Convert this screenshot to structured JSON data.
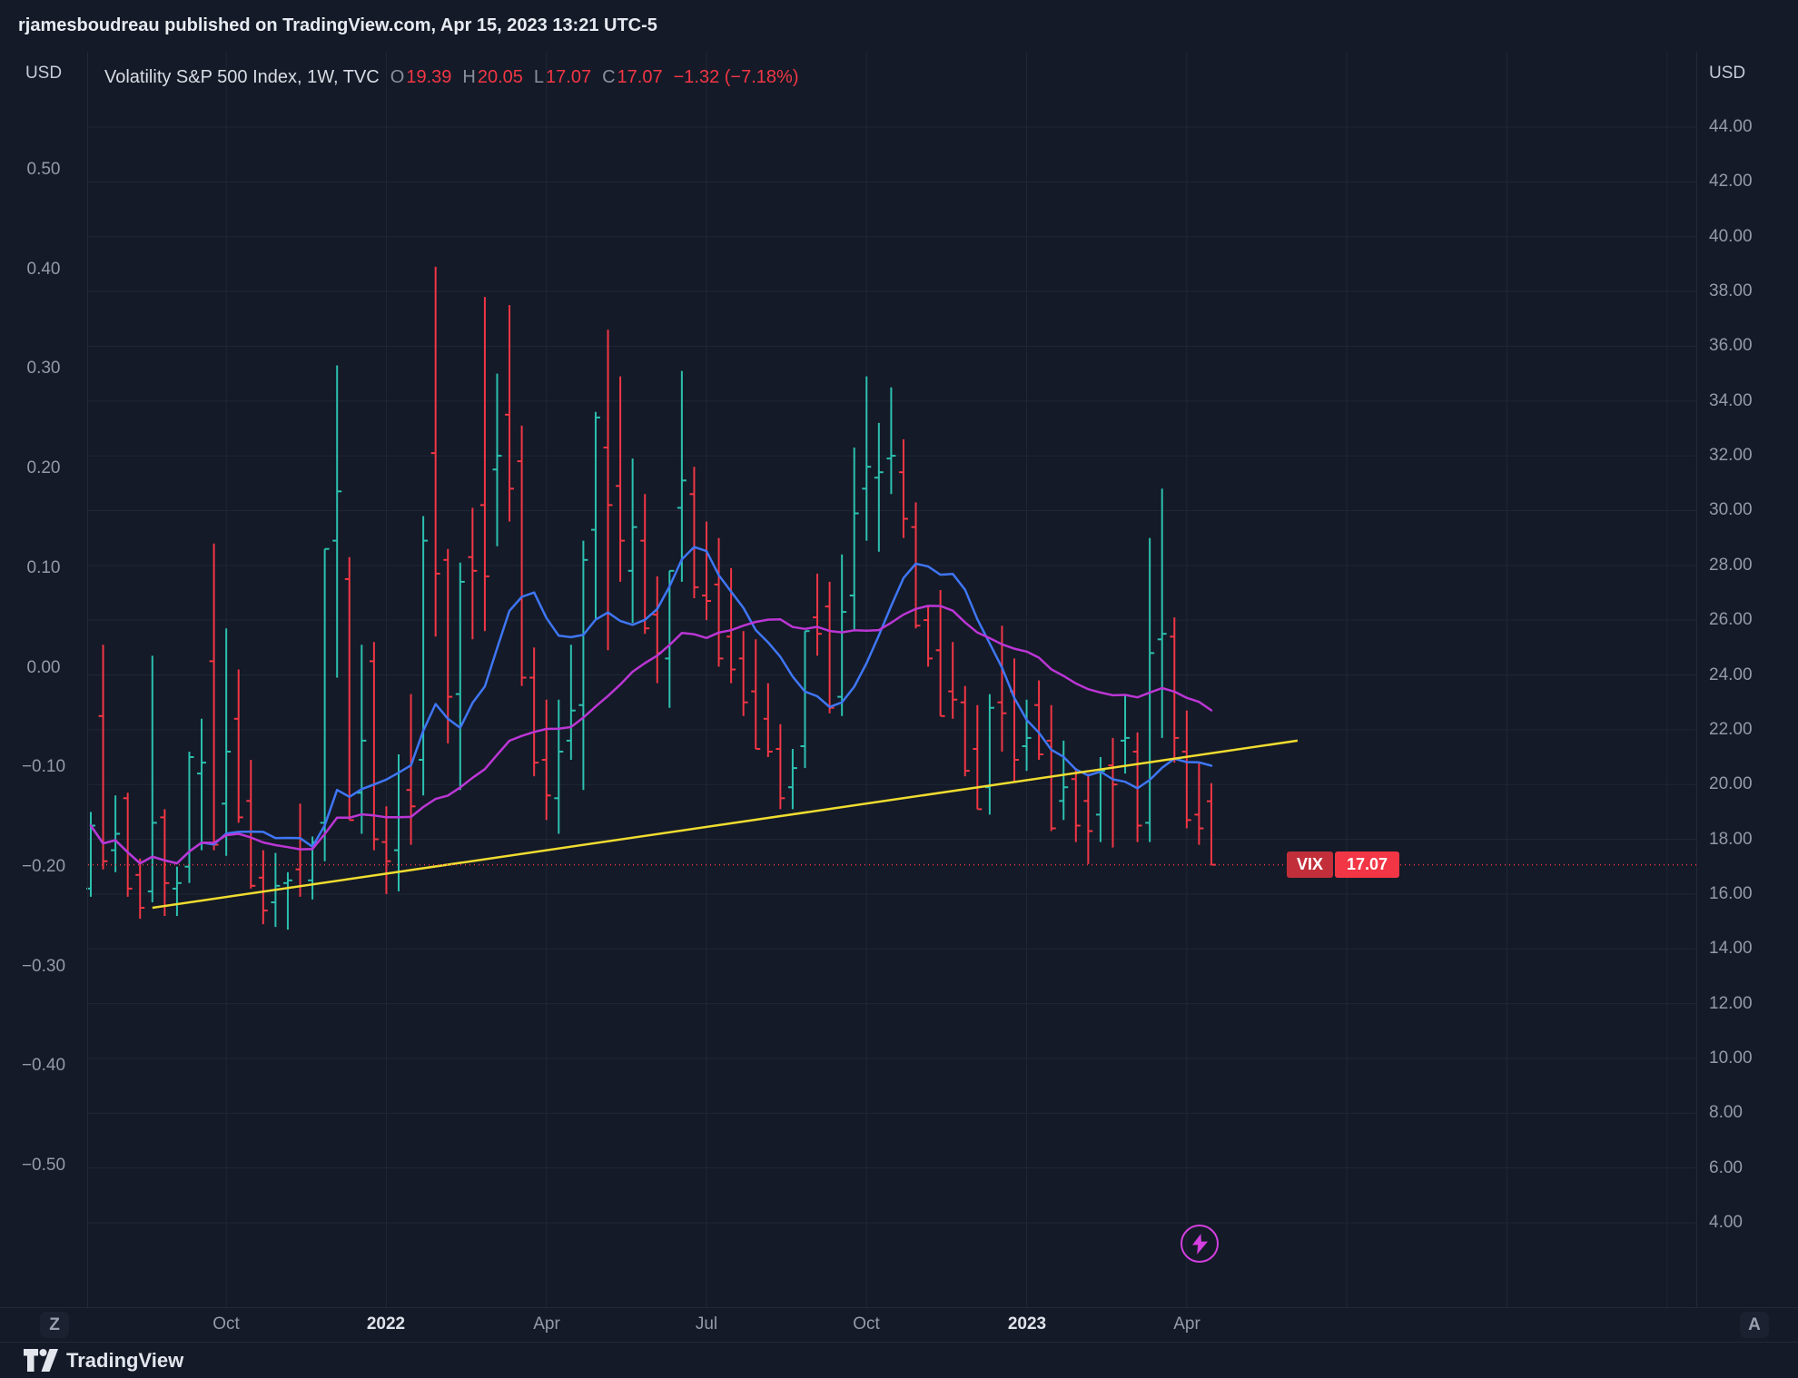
{
  "header": {
    "user": "rjamesboudreau",
    "rest": " published on TradingView.com, Apr 15, 2023 13:21 UTC-5"
  },
  "legend": {
    "title": "Volatility S&P 500 Index, 1W, TVC",
    "ohlc": [
      {
        "k": "O",
        "v": "19.39"
      },
      {
        "k": "H",
        "v": "20.05"
      },
      {
        "k": "L",
        "v": "17.07"
      },
      {
        "k": "C",
        "v": "17.07"
      }
    ],
    "change": "−1.32 (−7.18%)"
  },
  "axes": {
    "left_currency": "USD",
    "right_currency": "USD",
    "left_ticks": [
      "0.50",
      "0.40",
      "0.30",
      "0.20",
      "0.10",
      "0.00",
      "−0.10",
      "−0.20",
      "−0.30",
      "−0.40",
      "−0.50"
    ],
    "right_ticks": [
      "44.00",
      "42.00",
      "40.00",
      "38.00",
      "36.00",
      "34.00",
      "32.00",
      "30.00",
      "28.00",
      "26.00",
      "24.00",
      "22.00",
      "20.00",
      "18.00",
      "16.00",
      "14.00",
      "12.00",
      "10.00",
      "8.00",
      "6.00",
      "4.00"
    ]
  },
  "time_axis": {
    "ticks": [
      {
        "label": "Oct",
        "index": 11,
        "major": false
      },
      {
        "label": "2022",
        "index": 24,
        "major": true
      },
      {
        "label": "Apr",
        "index": 37,
        "major": false
      },
      {
        "label": "Jul",
        "index": 50,
        "major": false
      },
      {
        "label": "Oct",
        "index": 63,
        "major": false
      },
      {
        "label": "2023",
        "index": 76,
        "major": true
      },
      {
        "label": "Apr",
        "index": 89,
        "major": false
      }
    ]
  },
  "price_label": {
    "symbol": "VIX",
    "price": "17.07"
  },
  "buttons": {
    "left": "Z",
    "right": "A"
  },
  "footer": {
    "brand": "TradingView"
  },
  "chart_data": {
    "type": "bar",
    "title": "Volatility S&P 500 Index, 1W, TVC",
    "symbol": "VIX",
    "interval": "1W",
    "exchange": "TVC",
    "last": {
      "open": 19.39,
      "high": 20.05,
      "low": 17.07,
      "close": 17.07,
      "change": -1.32,
      "change_pct": -7.18
    },
    "right_axis": {
      "min": 4,
      "max": 44,
      "step": 2
    },
    "left_axis": {
      "min": -0.5,
      "max": 0.5,
      "step": 0.1
    },
    "colors": {
      "up": "#2cc0b0",
      "down": "#f23645",
      "grid": "#1f2736",
      "ma_fast": "#3f76f5",
      "ma_slow": "#bb36d4",
      "trend": "#f0dc30",
      "price_line": "#f23645"
    },
    "bars": [
      [
        "2021-07-12",
        16.2,
        19.0,
        15.9,
        18.5
      ],
      [
        "2021-07-19",
        22.5,
        25.1,
        16.9,
        17.2
      ],
      [
        "2021-07-26",
        17.6,
        19.6,
        16.8,
        18.2
      ],
      [
        "2021-08-02",
        19.5,
        19.7,
        15.9,
        16.2
      ],
      [
        "2021-08-09",
        16.7,
        17.3,
        15.1,
        15.5
      ],
      [
        "2021-08-16",
        16.1,
        24.7,
        15.7,
        18.6
      ],
      [
        "2021-08-23",
        18.8,
        19.1,
        15.2,
        16.4
      ],
      [
        "2021-08-30",
        16.2,
        17.0,
        15.2,
        16.4
      ],
      [
        "2021-09-06",
        17.0,
        21.2,
        16.4,
        21.0
      ],
      [
        "2021-09-13",
        20.4,
        22.4,
        17.6,
        20.8
      ],
      [
        "2021-09-20",
        24.5,
        28.8,
        17.6,
        17.8
      ],
      [
        "2021-09-27",
        19.3,
        25.7,
        17.4,
        21.2
      ],
      [
        "2021-10-04",
        22.4,
        24.2,
        18.6,
        18.8
      ],
      [
        "2021-10-11",
        19.4,
        20.9,
        16.2,
        16.3
      ],
      [
        "2021-10-18",
        16.6,
        17.6,
        14.9,
        15.4
      ],
      [
        "2021-10-25",
        15.7,
        17.5,
        14.8,
        16.3
      ],
      [
        "2021-11-01",
        16.4,
        16.8,
        14.7,
        16.5
      ],
      [
        "2021-11-08",
        16.9,
        19.3,
        15.9,
        16.3
      ],
      [
        "2021-11-15",
        16.5,
        18.1,
        15.8,
        17.9
      ],
      [
        "2021-11-22",
        18.6,
        28.6,
        17.2,
        28.6
      ],
      [
        "2021-11-29",
        28.9,
        35.3,
        23.9,
        30.7
      ],
      [
        "2021-12-06",
        27.5,
        28.3,
        18.7,
        18.7
      ],
      [
        "2021-12-13",
        19.7,
        25.1,
        18.2,
        21.6
      ],
      [
        "2021-12-20",
        24.5,
        25.2,
        17.6,
        18.0
      ],
      [
        "2021-12-27",
        17.9,
        19.2,
        16.0,
        17.2
      ],
      [
        "2022-01-03",
        17.6,
        21.1,
        16.1,
        18.8
      ],
      [
        "2022-01-10",
        19.8,
        23.3,
        17.8,
        19.2
      ],
      [
        "2022-01-18",
        20.9,
        29.8,
        19.6,
        28.9
      ],
      [
        "2022-01-24",
        32.1,
        38.9,
        25.4,
        27.7
      ],
      [
        "2022-01-31",
        28.2,
        28.6,
        21.5,
        23.2
      ],
      [
        "2022-02-07",
        23.3,
        28.1,
        19.8,
        27.4
      ],
      [
        "2022-02-14",
        28.3,
        30.1,
        25.3,
        27.8
      ],
      [
        "2022-02-22",
        30.2,
        37.8,
        25.6,
        27.6
      ],
      [
        "2022-02-28",
        31.5,
        35.0,
        28.7,
        32.0
      ],
      [
        "2022-03-07",
        33.5,
        37.5,
        29.6,
        30.8
      ],
      [
        "2022-03-14",
        31.8,
        33.1,
        23.6,
        23.9
      ],
      [
        "2022-03-21",
        23.9,
        25.0,
        20.3,
        20.8
      ],
      [
        "2022-03-28",
        20.9,
        23.1,
        18.7,
        19.6
      ],
      [
        "2022-04-04",
        19.5,
        23.1,
        18.2,
        21.2
      ],
      [
        "2022-04-11",
        21.6,
        25.1,
        20.9,
        22.7
      ],
      [
        "2022-04-18",
        22.9,
        28.9,
        19.8,
        28.2
      ],
      [
        "2022-04-25",
        29.3,
        33.6,
        26.0,
        33.4
      ],
      [
        "2022-05-02",
        32.3,
        36.6,
        24.9,
        30.2
      ],
      [
        "2022-05-09",
        30.9,
        34.9,
        27.4,
        28.9
      ],
      [
        "2022-05-16",
        27.8,
        31.9,
        25.9,
        29.4
      ],
      [
        "2022-05-23",
        28.9,
        30.6,
        25.5,
        25.7
      ],
      [
        "2022-05-31",
        26.2,
        27.6,
        23.7,
        24.8
      ],
      [
        "2022-06-06",
        24.6,
        27.8,
        22.8,
        27.8
      ],
      [
        "2022-06-13",
        30.1,
        35.1,
        27.4,
        31.1
      ],
      [
        "2022-06-21",
        30.6,
        31.6,
        26.8,
        27.2
      ],
      [
        "2022-06-27",
        26.9,
        29.6,
        26.0,
        26.7
      ],
      [
        "2022-07-05",
        27.3,
        29.0,
        24.3,
        24.6
      ],
      [
        "2022-07-11",
        25.4,
        27.9,
        23.7,
        24.2
      ],
      [
        "2022-07-18",
        24.6,
        25.6,
        22.5,
        23.0
      ],
      [
        "2022-07-25",
        23.4,
        25.3,
        21.3,
        21.3
      ],
      [
        "2022-08-01",
        22.4,
        23.7,
        21.0,
        21.2
      ],
      [
        "2022-08-08",
        21.3,
        22.2,
        19.1,
        19.5
      ],
      [
        "2022-08-15",
        19.9,
        21.3,
        19.1,
        20.6
      ],
      [
        "2022-08-22",
        21.4,
        25.6,
        20.6,
        25.6
      ],
      [
        "2022-08-29",
        26.1,
        27.7,
        24.7,
        25.5
      ],
      [
        "2022-09-06",
        26.5,
        27.4,
        22.6,
        22.8
      ],
      [
        "2022-09-12",
        23.2,
        28.4,
        22.5,
        26.3
      ],
      [
        "2022-09-19",
        26.9,
        32.3,
        25.6,
        29.9
      ],
      [
        "2022-09-26",
        30.8,
        34.9,
        28.9,
        31.6
      ],
      [
        "2022-10-03",
        31.2,
        33.2,
        28.5,
        31.4
      ],
      [
        "2022-10-10",
        31.9,
        34.5,
        30.6,
        32.0
      ],
      [
        "2022-10-17",
        31.4,
        32.6,
        29.0,
        29.7
      ],
      [
        "2022-10-24",
        29.4,
        30.3,
        25.7,
        25.8
      ],
      [
        "2022-10-31",
        26.0,
        26.5,
        24.3,
        24.6
      ],
      [
        "2022-11-07",
        24.9,
        27.1,
        22.5,
        22.5
      ],
      [
        "2022-11-14",
        23.4,
        25.2,
        22.4,
        23.1
      ],
      [
        "2022-11-21",
        23.0,
        23.6,
        20.3,
        20.5
      ],
      [
        "2022-11-28",
        21.3,
        22.9,
        19.1,
        19.1
      ],
      [
        "2022-12-05",
        19.9,
        23.3,
        18.9,
        22.8
      ],
      [
        "2022-12-12",
        23.0,
        25.8,
        21.2,
        22.6
      ],
      [
        "2022-12-19",
        23.4,
        24.6,
        20.1,
        20.9
      ],
      [
        "2022-12-27",
        21.4,
        23.1,
        20.5,
        21.7
      ],
      [
        "2023-01-03",
        22.9,
        23.8,
        20.9,
        21.1
      ],
      [
        "2023-01-09",
        21.6,
        22.9,
        18.3,
        18.4
      ],
      [
        "2023-01-17",
        19.4,
        21.6,
        18.7,
        19.9
      ],
      [
        "2023-01-23",
        20.2,
        20.6,
        17.9,
        18.5
      ],
      [
        "2023-01-30",
        19.4,
        20.4,
        17.1,
        18.3
      ],
      [
        "2023-02-06",
        18.9,
        21.0,
        17.9,
        20.5
      ],
      [
        "2023-02-13",
        20.7,
        21.7,
        17.7,
        20.0
      ],
      [
        "2023-02-21",
        21.6,
        23.3,
        20.4,
        21.7
      ],
      [
        "2023-02-27",
        21.2,
        21.9,
        17.9,
        18.5
      ],
      [
        "2023-03-06",
        18.6,
        29.0,
        17.9,
        24.8
      ],
      [
        "2023-03-13",
        25.3,
        30.8,
        21.7,
        25.5
      ],
      [
        "2023-03-20",
        25.4,
        26.1,
        20.8,
        21.7
      ],
      [
        "2023-03-27",
        21.2,
        22.7,
        18.4,
        18.7
      ],
      [
        "2023-04-03",
        18.9,
        20.8,
        17.8,
        18.4
      ],
      [
        "2023-04-10",
        19.39,
        20.05,
        17.07,
        17.07
      ]
    ],
    "overlays": [
      {
        "name": "ma-fast-line",
        "type": "sma",
        "length": 10,
        "color_key": "ma_fast"
      },
      {
        "name": "ma-slow-line",
        "type": "sma",
        "length": 30,
        "color_key": "ma_slow"
      }
    ],
    "trendline": {
      "start_index": 5,
      "start_value": 15.5,
      "end_index": 98,
      "end_value": 21.6
    },
    "price_line": {
      "value": 17.07
    },
    "future_grid_indices": [
      102,
      115,
      128
    ]
  }
}
